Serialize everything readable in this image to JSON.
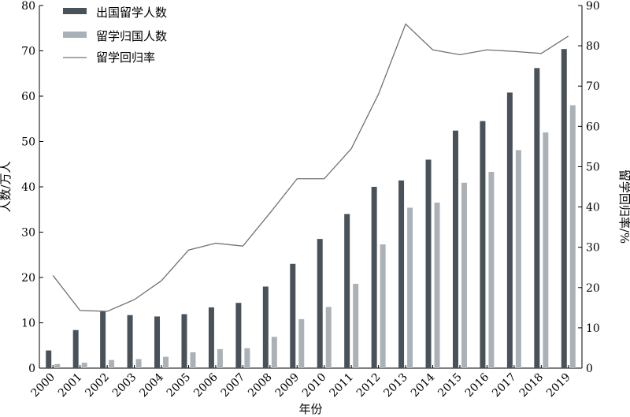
{
  "chart_data": {
    "type": "bar",
    "categories": [
      "2000",
      "2001",
      "2002",
      "2003",
      "2004",
      "2005",
      "2006",
      "2007",
      "2008",
      "2009",
      "2010",
      "2011",
      "2012",
      "2013",
      "2014",
      "2015",
      "2016",
      "2017",
      "2018",
      "2019"
    ],
    "series": [
      {
        "name": "出国留学人数",
        "type": "bar",
        "axis": "left",
        "color": "#4a5259",
        "values": [
          3.9,
          8.4,
          12.5,
          11.7,
          11.4,
          11.9,
          13.4,
          14.4,
          18.0,
          23.0,
          28.5,
          34.0,
          40.0,
          41.4,
          46.0,
          52.4,
          54.5,
          60.8,
          66.2,
          70.4
        ]
      },
      {
        "name": "留学归国人数",
        "type": "bar",
        "axis": "left",
        "color": "#aab2b7",
        "values": [
          0.9,
          1.2,
          1.8,
          2.0,
          2.5,
          3.5,
          4.2,
          4.4,
          6.9,
          10.8,
          13.5,
          18.6,
          27.3,
          35.4,
          36.5,
          40.9,
          43.3,
          48.1,
          52.0,
          58.0
        ]
      },
      {
        "name": "留学回归率",
        "type": "line",
        "axis": "right",
        "color": "#6b7479",
        "values": [
          23.0,
          14.3,
          14.1,
          17.0,
          21.7,
          29.3,
          31.0,
          30.3,
          38.5,
          47.0,
          47.0,
          54.5,
          68.0,
          85.4,
          79.0,
          77.8,
          79.0,
          78.6,
          78.1,
          82.4
        ]
      }
    ],
    "ylim": [
      0,
      80
    ],
    "yticks": [
      0,
      10,
      20,
      30,
      40,
      50,
      60,
      70,
      80
    ],
    "ylabel": "人数/万人",
    "y2lim": [
      0,
      90
    ],
    "y2ticks": [
      0,
      10,
      20,
      30,
      40,
      50,
      60,
      70,
      80,
      90
    ],
    "y2label": "留学回归率/%",
    "xlabel": "年份",
    "legend": "top-left",
    "grid": false
  }
}
